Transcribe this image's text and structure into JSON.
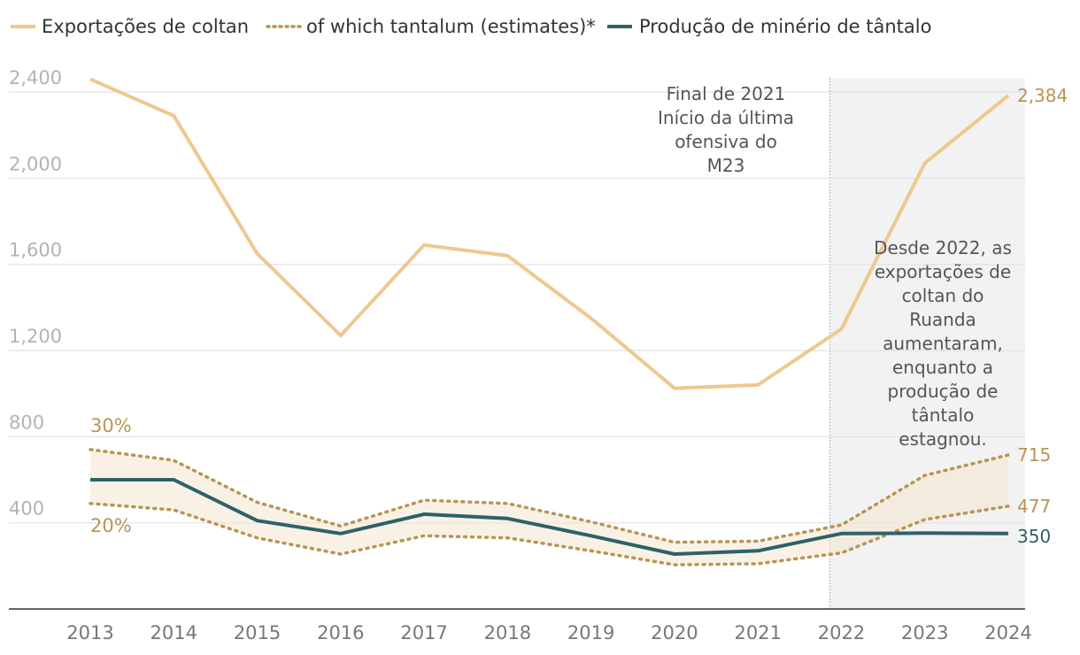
{
  "chart_data": {
    "type": "line",
    "x": [
      2013,
      2014,
      2015,
      2016,
      2017,
      2018,
      2019,
      2020,
      2021,
      2022,
      2023,
      2024
    ],
    "x_tick_labels": [
      "2013",
      "2014",
      "2015",
      "2016",
      "2017",
      "2018",
      "2019",
      "2020",
      "2021",
      "2022",
      "2023",
      "2024"
    ],
    "ylim": [
      0,
      2400
    ],
    "y_ticks": [
      400,
      800,
      1200,
      1600,
      2000,
      2400
    ],
    "y_tick_labels": [
      "400",
      "800",
      "1,200",
      "1,600",
      "2,000",
      "2,400"
    ],
    "grid": true,
    "legend_position": "top-left",
    "series": [
      {
        "name": "Exportações de coltan",
        "style": "solid",
        "color": "#efc88f",
        "values": [
          2460,
          2290,
          1650,
          1270,
          1690,
          1640,
          1350,
          1025,
          1040,
          1300,
          2070,
          2384
        ]
      },
      {
        "name": "of which tantalum (estimates)*",
        "style": "dotted",
        "color": "#b89555",
        "upper_label": "30%",
        "lower_label": "20%",
        "upper": [
          740,
          690,
          495,
          385,
          505,
          490,
          405,
          310,
          315,
          390,
          620,
          715
        ],
        "lower": [
          490,
          460,
          330,
          255,
          340,
          330,
          270,
          205,
          210,
          260,
          415,
          477
        ]
      },
      {
        "name": "Produção de minério de tântalo",
        "style": "solid",
        "color": "#2e6168",
        "values": [
          600,
          600,
          410,
          350,
          440,
          420,
          340,
          255,
          270,
          350,
          352,
          350
        ]
      }
    ],
    "end_labels": {
      "exports": "2,384",
      "upper": "715",
      "lower": "477",
      "production": "350"
    },
    "highlight": {
      "from": 2022,
      "to": 2024,
      "color": "#f2f2f2"
    },
    "annotations": {
      "m23": [
        "Final de 2021",
        "Início da última",
        "ofensiva do",
        "M23"
      ],
      "note": [
        "Desde 2022, as",
        "exportações de",
        "coltan do",
        "Ruanda",
        "aumentaram,",
        "enquanto a",
        "produção de",
        "tântalo",
        "estagnou."
      ]
    }
  }
}
